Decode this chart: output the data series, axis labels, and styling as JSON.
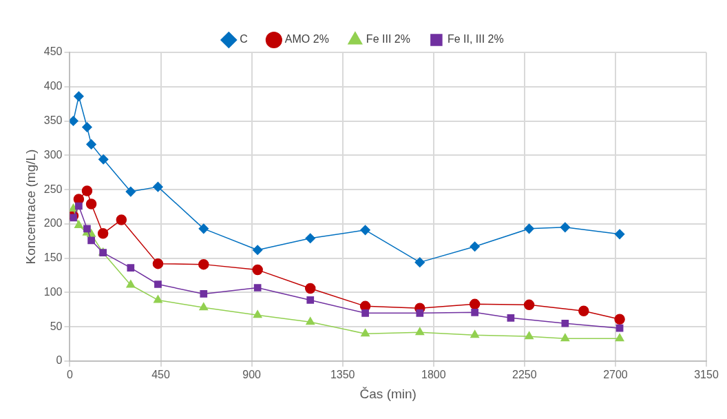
{
  "chart_data": {
    "type": "line",
    "xlabel": "Čas (min)",
    "ylabel": "Koncentrace (mg/L)",
    "xlim": [
      0,
      3150
    ],
    "xticks": [
      0,
      450,
      900,
      1350,
      1800,
      2250,
      2700,
      3150
    ],
    "ylim": [
      0,
      450
    ],
    "yticks": [
      0,
      50,
      100,
      150,
      200,
      250,
      300,
      350,
      400,
      450
    ],
    "grid": true,
    "legend": "top",
    "series": [
      {
        "name": "C",
        "color": "#0070c0",
        "marker": "diamond",
        "x": [
          17,
          44,
          85,
          106,
          166,
          301,
          436,
          662,
          929,
          1190,
          1462,
          1732,
          2004,
          2273,
          2451,
          2721
        ],
        "values": [
          350,
          386,
          341,
          316,
          294,
          247,
          254,
          193,
          162,
          179,
          191,
          144,
          167,
          193,
          195,
          185
        ]
      },
      {
        "name": "AMO 2%",
        "color": "#c00000",
        "marker": "circle",
        "x": [
          17,
          44,
          85,
          106,
          164,
          255,
          436,
          662,
          929,
          1190,
          1462,
          1732,
          2004,
          2273,
          2543,
          2721
        ],
        "values": [
          212,
          236,
          248,
          229,
          186,
          206,
          142,
          141,
          133,
          106,
          80,
          77,
          83,
          82,
          73,
          61
        ]
      },
      {
        "name": "Fe III 2%",
        "color": "#92d050",
        "marker": "triangle",
        "x": [
          17,
          44,
          85,
          106,
          164,
          301,
          436,
          662,
          929,
          1190,
          1462,
          1732,
          2004,
          2273,
          2451,
          2721
        ],
        "values": [
          222,
          198,
          187,
          185,
          158,
          111,
          89,
          78,
          67,
          57,
          40,
          42,
          38,
          36,
          33,
          33
        ]
      },
      {
        "name": "Fe II, III 2%",
        "color": "#7030a0",
        "marker": "square",
        "x": [
          17,
          44,
          85,
          106,
          164,
          301,
          436,
          662,
          929,
          1190,
          1462,
          1732,
          2004,
          2182,
          2451,
          2721
        ],
        "values": [
          209,
          226,
          193,
          176,
          158,
          136,
          112,
          98,
          107,
          89,
          70,
          70,
          71,
          63,
          55,
          48
        ]
      }
    ]
  }
}
